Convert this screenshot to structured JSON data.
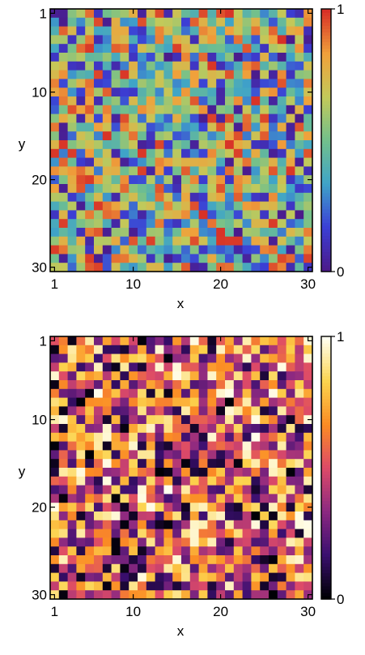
{
  "chart_data": [
    {
      "type": "heatmap",
      "colormap": "rainbow (purple-blue-green-yellow-red)",
      "colormap_stops": [
        "#4b1a8a",
        "#3b3fd6",
        "#3fa4c8",
        "#72c08c",
        "#c2c95a",
        "#f0a13b",
        "#d73027"
      ],
      "grid_size": [
        30,
        30
      ],
      "xlabel": "x",
      "ylabel": "y",
      "xticks": [
        1,
        10,
        20,
        30
      ],
      "yticks": [
        1,
        10,
        20,
        30
      ],
      "xlim": [
        1,
        30
      ],
      "ylim": [
        1,
        30
      ],
      "y_inverted": true,
      "colorbar": {
        "range": [
          0,
          1
        ],
        "ticks": [
          0,
          1
        ],
        "labels": [
          "0",
          "1"
        ]
      },
      "values": "random values in [0, 1] for each of the 30 x 30 cells (individual cell values not labeled)"
    },
    {
      "type": "heatmap",
      "colormap": "inferno (black-purple-orange-yellow-white)",
      "colormap_stops": [
        "#000004",
        "#3b0f70",
        "#8c2981",
        "#dd4a68",
        "#fb8b24",
        "#fcd34d",
        "#fffff0"
      ],
      "grid_size": [
        30,
        30
      ],
      "xlabel": "x",
      "ylabel": "y",
      "xticks": [
        1,
        10,
        20,
        30
      ],
      "yticks": [
        1,
        10,
        20,
        30
      ],
      "xlim": [
        1,
        30
      ],
      "ylim": [
        1,
        30
      ],
      "y_inverted": true,
      "colorbar": {
        "range": [
          0,
          1
        ],
        "ticks": [
          0,
          1
        ],
        "labels": [
          "0",
          "1"
        ]
      },
      "values": "random values in [0, 1] for each of the 30 x 30 cells (individual cell values not labeled)"
    }
  ]
}
